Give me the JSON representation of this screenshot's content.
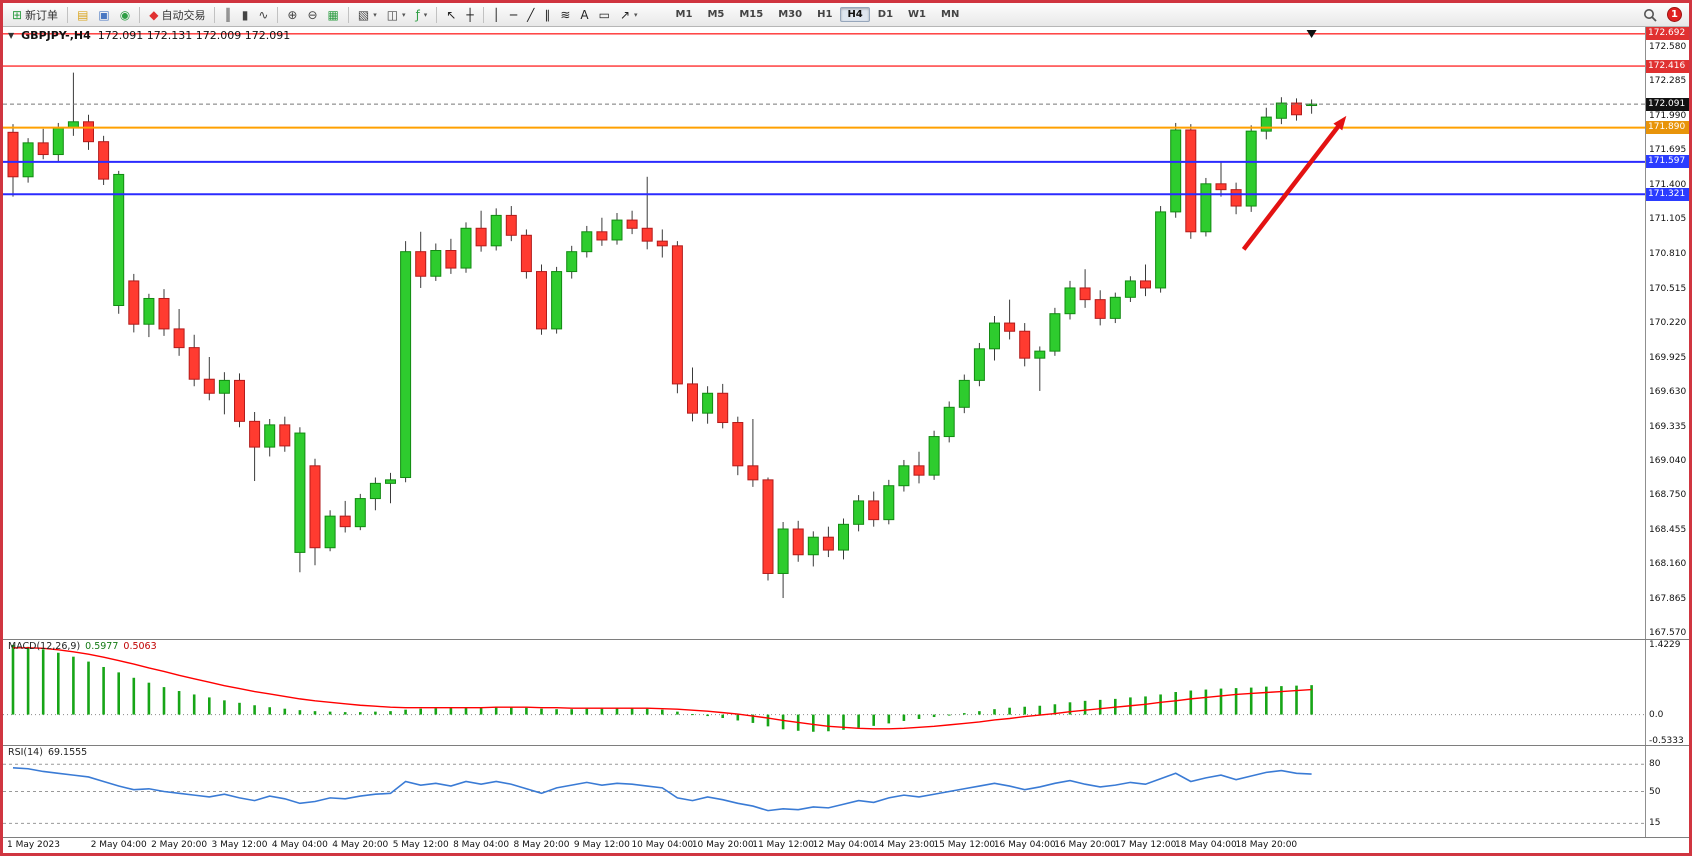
{
  "window": {
    "notification_count": "1",
    "frame_color": "#d03540"
  },
  "toolbar": {
    "groups": [
      {
        "items": [
          {
            "name": "new-order",
            "glyph": "⊞",
            "color": "#2f9e44",
            "label": "新订单"
          }
        ]
      },
      {
        "items": [
          {
            "name": "strategy-tester",
            "glyph": "▤",
            "color": "#d9a520"
          },
          {
            "name": "market-watch",
            "glyph": "▣",
            "color": "#4a78c2"
          },
          {
            "name": "history-center",
            "glyph": "◉",
            "color": "#2f9e44"
          }
        ]
      },
      {
        "items": [
          {
            "name": "autotrading",
            "glyph": "◆",
            "color": "#e03131",
            "label": "自动交易"
          }
        ]
      },
      {
        "items": [
          {
            "name": "bar-chart-mode",
            "glyph": "║",
            "color": "#444"
          },
          {
            "name": "candle-chart-mode",
            "glyph": "▮",
            "color": "#444"
          },
          {
            "name": "line-chart-mode",
            "glyph": "∿",
            "color": "#444"
          }
        ]
      },
      {
        "items": [
          {
            "name": "zoom-in",
            "glyph": "⊕",
            "color": "#444"
          },
          {
            "name": "zoom-out",
            "glyph": "⊖",
            "color": "#444"
          },
          {
            "name": "tile-windows",
            "glyph": "▦",
            "color": "#2f9e44"
          }
        ]
      },
      {
        "items": [
          {
            "name": "new-chart",
            "glyph": "▧",
            "color": "#444",
            "caret": true
          },
          {
            "name": "profiles",
            "glyph": "◫",
            "color": "#444",
            "caret": true
          },
          {
            "name": "indicators",
            "glyph": "ƒ",
            "color": "#2f9e44",
            "caret": true
          }
        ]
      },
      {
        "items": [
          {
            "name": "cursor",
            "glyph": "↖",
            "color": "#222"
          },
          {
            "name": "crosshair",
            "glyph": "┼",
            "color": "#222"
          }
        ]
      },
      {
        "items": [
          {
            "name": "vertical-line",
            "glyph": "│",
            "color": "#222"
          },
          {
            "name": "horizontal-line",
            "glyph": "─",
            "color": "#222"
          },
          {
            "name": "trendline",
            "glyph": "╱",
            "color": "#222"
          },
          {
            "name": "equidistant-channel",
            "glyph": "∥",
            "color": "#222"
          },
          {
            "name": "fibonacci",
            "glyph": "≋",
            "color": "#222"
          },
          {
            "name": "text",
            "glyph": "A",
            "color": "#222"
          },
          {
            "name": "text-label",
            "glyph": "▭",
            "color": "#222"
          },
          {
            "name": "arrows-tool",
            "glyph": "↗",
            "color": "#222",
            "caret": true
          }
        ]
      }
    ],
    "timeframes": [
      {
        "label": "M1"
      },
      {
        "label": "M5"
      },
      {
        "label": "M15"
      },
      {
        "label": "M30"
      },
      {
        "label": "H1"
      },
      {
        "label": "H4",
        "active": true
      },
      {
        "label": "D1"
      },
      {
        "label": "W1"
      },
      {
        "label": "MN"
      }
    ]
  },
  "chart": {
    "symbol_period": "GBPJPY-,H4",
    "ohlc": "172.091 172.131 172.009 172.091"
  },
  "macd": {
    "label": "MACD(12,26,9)",
    "value_main": "0.5977",
    "value_signal": "0.5063",
    "axis": [
      "1.4229",
      "0.0",
      "-0.5333"
    ]
  },
  "rsi": {
    "label": "RSI(14)",
    "value": "69.1555",
    "axis": [
      "80",
      "50",
      "15"
    ]
  },
  "chart_data": {
    "type": "candlestick",
    "symbol": "GBPJPY",
    "period": "H4",
    "current_price": 172.091,
    "candles": [
      [
        171.85,
        171.92,
        171.3,
        171.47
      ],
      [
        171.47,
        171.8,
        171.42,
        171.76
      ],
      [
        171.76,
        171.88,
        171.62,
        171.66
      ],
      [
        171.66,
        171.93,
        171.6,
        171.89
      ],
      [
        171.89,
        172.36,
        171.82,
        171.94
      ],
      [
        171.94,
        172.0,
        171.7,
        171.77
      ],
      [
        171.77,
        171.82,
        171.4,
        171.45
      ],
      [
        170.37,
        171.52,
        170.3,
        171.49
      ],
      [
        170.58,
        170.64,
        170.14,
        170.21
      ],
      [
        170.21,
        170.47,
        170.1,
        170.43
      ],
      [
        170.43,
        170.51,
        170.11,
        170.17
      ],
      [
        170.17,
        170.34,
        169.94,
        170.01
      ],
      [
        170.01,
        170.12,
        169.68,
        169.74
      ],
      [
        169.74,
        169.93,
        169.56,
        169.62
      ],
      [
        169.62,
        169.8,
        169.44,
        169.73
      ],
      [
        169.73,
        169.79,
        169.33,
        169.38
      ],
      [
        169.38,
        169.46,
        168.87,
        169.16
      ],
      [
        169.16,
        169.4,
        169.08,
        169.35
      ],
      [
        169.35,
        169.42,
        169.12,
        169.17
      ],
      [
        168.26,
        169.33,
        168.09,
        169.28
      ],
      [
        169.0,
        169.06,
        168.15,
        168.3
      ],
      [
        168.3,
        168.62,
        168.27,
        168.57
      ],
      [
        168.57,
        168.7,
        168.43,
        168.48
      ],
      [
        168.48,
        168.76,
        168.45,
        168.72
      ],
      [
        168.72,
        168.9,
        168.62,
        168.85
      ],
      [
        168.85,
        168.94,
        168.68,
        168.88
      ],
      [
        168.9,
        170.92,
        168.86,
        170.83
      ],
      [
        170.83,
        171.0,
        170.52,
        170.62
      ],
      [
        170.62,
        170.9,
        170.58,
        170.84
      ],
      [
        170.84,
        170.94,
        170.64,
        170.69
      ],
      [
        170.69,
        171.08,
        170.65,
        171.03
      ],
      [
        171.03,
        171.18,
        170.83,
        170.88
      ],
      [
        170.88,
        171.2,
        170.84,
        171.14
      ],
      [
        171.14,
        171.22,
        170.92,
        170.97
      ],
      [
        170.97,
        171.02,
        170.6,
        170.66
      ],
      [
        170.66,
        170.72,
        170.12,
        170.17
      ],
      [
        170.17,
        170.7,
        170.13,
        170.66
      ],
      [
        170.66,
        170.88,
        170.6,
        170.83
      ],
      [
        170.83,
        171.05,
        170.78,
        171.0
      ],
      [
        171.0,
        171.12,
        170.88,
        170.93
      ],
      [
        170.93,
        171.16,
        170.89,
        171.1
      ],
      [
        171.1,
        171.18,
        170.98,
        171.03
      ],
      [
        171.03,
        171.47,
        170.85,
        170.92
      ],
      [
        170.92,
        171.02,
        170.78,
        170.88
      ],
      [
        170.88,
        170.92,
        169.62,
        169.7
      ],
      [
        169.7,
        169.84,
        169.38,
        169.45
      ],
      [
        169.45,
        169.68,
        169.36,
        169.62
      ],
      [
        169.62,
        169.7,
        169.32,
        169.37
      ],
      [
        169.37,
        169.42,
        168.92,
        169.0
      ],
      [
        169.0,
        169.4,
        168.82,
        168.88
      ],
      [
        168.88,
        168.9,
        168.02,
        168.08
      ],
      [
        168.08,
        168.52,
        167.87,
        168.46
      ],
      [
        168.46,
        168.53,
        168.18,
        168.24
      ],
      [
        168.24,
        168.44,
        168.14,
        168.39
      ],
      [
        168.39,
        168.48,
        168.22,
        168.28
      ],
      [
        168.28,
        168.55,
        168.2,
        168.5
      ],
      [
        168.5,
        168.75,
        168.44,
        168.7
      ],
      [
        168.7,
        168.78,
        168.48,
        168.54
      ],
      [
        168.54,
        168.88,
        168.5,
        168.83
      ],
      [
        168.83,
        169.05,
        168.78,
        169.0
      ],
      [
        169.0,
        169.12,
        168.85,
        168.92
      ],
      [
        168.92,
        169.3,
        168.88,
        169.25
      ],
      [
        169.25,
        169.55,
        169.2,
        169.5
      ],
      [
        169.5,
        169.78,
        169.45,
        169.73
      ],
      [
        169.73,
        170.05,
        169.68,
        170.0
      ],
      [
        170.0,
        170.28,
        169.9,
        170.22
      ],
      [
        170.22,
        170.42,
        170.08,
        170.15
      ],
      [
        170.15,
        170.22,
        169.85,
        169.92
      ],
      [
        169.92,
        170.02,
        169.64,
        169.98
      ],
      [
        169.98,
        170.35,
        169.94,
        170.3
      ],
      [
        170.3,
        170.58,
        170.25,
        170.52
      ],
      [
        170.52,
        170.68,
        170.35,
        170.42
      ],
      [
        170.42,
        170.5,
        170.2,
        170.26
      ],
      [
        170.26,
        170.48,
        170.22,
        170.44
      ],
      [
        170.44,
        170.62,
        170.4,
        170.58
      ],
      [
        170.58,
        170.72,
        170.45,
        170.52
      ],
      [
        170.52,
        171.22,
        170.48,
        171.17
      ],
      [
        171.17,
        171.93,
        171.12,
        171.87
      ],
      [
        171.87,
        171.92,
        170.94,
        171.0
      ],
      [
        171.0,
        171.46,
        170.96,
        171.41
      ],
      [
        171.41,
        171.6,
        171.3,
        171.36
      ],
      [
        171.36,
        171.42,
        171.15,
        171.22
      ],
      [
        171.22,
        171.91,
        171.17,
        171.86
      ],
      [
        171.86,
        172.06,
        171.79,
        171.98
      ],
      [
        171.97,
        172.15,
        171.92,
        172.1
      ],
      [
        172.1,
        172.14,
        171.95,
        172.0
      ],
      [
        172.091,
        172.131,
        172.009,
        172.091
      ]
    ],
    "price_axis_ticks": [
      "172.580",
      "172.285",
      "171.990",
      "171.695",
      "171.400",
      "171.105",
      "170.810",
      "170.515",
      "170.220",
      "169.925",
      "169.630",
      "169.335",
      "169.040",
      "168.750",
      "168.455",
      "168.160",
      "167.865",
      "167.570"
    ],
    "price_badges": [
      {
        "price": 172.692,
        "label": "172.692",
        "color": "#e03131"
      },
      {
        "price": 172.416,
        "label": "172.416",
        "color": "#e03131"
      },
      {
        "price": 172.091,
        "label": "172.091",
        "color": "#111111"
      },
      {
        "price": 171.89,
        "label": "171.890",
        "color": "#e8940a"
      },
      {
        "price": 171.597,
        "label": "171.597",
        "color": "#2b3cff"
      },
      {
        "price": 171.321,
        "label": "171.321",
        "color": "#2b3cff"
      }
    ],
    "hlines": [
      {
        "price": 172.692,
        "color": "#ff2e2e",
        "width": 1.4
      },
      {
        "price": 172.416,
        "color": "#ff2e2e",
        "width": 1.4
      },
      {
        "price": 171.89,
        "color": "#ffa000",
        "width": 2
      },
      {
        "price": 171.597,
        "color": "#2b2bff",
        "width": 2
      },
      {
        "price": 171.321,
        "color": "#2b2bff",
        "width": 2
      }
    ],
    "time_labels": [
      {
        "label": "1 May 2023",
        "index": 0
      },
      {
        "label": "2 May 04:00",
        "index": 7
      },
      {
        "label": "2 May 20:00",
        "index": 11
      },
      {
        "label": "3 May 12:00",
        "index": 15
      },
      {
        "label": "4 May 04:00",
        "index": 19
      },
      {
        "label": "4 May 20:00",
        "index": 23
      },
      {
        "label": "5 May 12:00",
        "index": 27
      },
      {
        "label": "8 May 04:00",
        "index": 31
      },
      {
        "label": "8 May 20:00",
        "index": 35
      },
      {
        "label": "9 May 12:00",
        "index": 39
      },
      {
        "label": "10 May 04:00",
        "index": 43
      },
      {
        "label": "10 May 20:00",
        "index": 47
      },
      {
        "label": "11 May 12:00",
        "index": 51
      },
      {
        "label": "12 May 04:00",
        "index": 55
      },
      {
        "label": "14 May 23:00",
        "index": 59
      },
      {
        "label": "15 May 12:00",
        "index": 63
      },
      {
        "label": "16 May 04:00",
        "index": 67
      },
      {
        "label": "16 May 20:00",
        "index": 71
      },
      {
        "label": "17 May 12:00",
        "index": 75
      },
      {
        "label": "18 May 04:00",
        "index": 79
      },
      {
        "label": "18 May 20:00",
        "index": 83
      }
    ],
    "indicators": {
      "macd": {
        "range": {
          "max": 1.4229,
          "min": -0.5333
        },
        "histogram": [
          1.42,
          1.38,
          1.33,
          1.26,
          1.18,
          1.08,
          0.97,
          0.86,
          0.75,
          0.65,
          0.56,
          0.48,
          0.41,
          0.35,
          0.29,
          0.24,
          0.19,
          0.15,
          0.12,
          0.09,
          0.07,
          0.06,
          0.05,
          0.05,
          0.06,
          0.07,
          0.1,
          0.12,
          0.13,
          0.14,
          0.15,
          0.15,
          0.16,
          0.15,
          0.14,
          0.12,
          0.11,
          0.11,
          0.12,
          0.12,
          0.13,
          0.13,
          0.12,
          0.1,
          0.06,
          0.01,
          -0.03,
          -0.07,
          -0.12,
          -0.17,
          -0.24,
          -0.3,
          -0.33,
          -0.35,
          -0.34,
          -0.31,
          -0.27,
          -0.23,
          -0.18,
          -0.13,
          -0.09,
          -0.05,
          -0.01,
          0.03,
          0.07,
          0.11,
          0.14,
          0.16,
          0.18,
          0.21,
          0.25,
          0.28,
          0.3,
          0.32,
          0.35,
          0.37,
          0.41,
          0.46,
          0.49,
          0.51,
          0.53,
          0.54,
          0.55,
          0.57,
          0.58,
          0.59,
          0.6
        ],
        "signal": [
          1.36,
          1.36,
          1.35,
          1.32,
          1.28,
          1.23,
          1.17,
          1.1,
          1.03,
          0.95,
          0.88,
          0.8,
          0.73,
          0.66,
          0.59,
          0.53,
          0.47,
          0.42,
          0.37,
          0.32,
          0.28,
          0.25,
          0.22,
          0.19,
          0.17,
          0.15,
          0.14,
          0.14,
          0.14,
          0.14,
          0.14,
          0.14,
          0.15,
          0.15,
          0.15,
          0.14,
          0.14,
          0.13,
          0.13,
          0.13,
          0.13,
          0.13,
          0.13,
          0.12,
          0.11,
          0.09,
          0.07,
          0.04,
          0.01,
          -0.03,
          -0.07,
          -0.12,
          -0.16,
          -0.2,
          -0.24,
          -0.26,
          -0.28,
          -0.29,
          -0.29,
          -0.28,
          -0.26,
          -0.24,
          -0.21,
          -0.18,
          -0.15,
          -0.11,
          -0.08,
          -0.04,
          -0.01,
          0.02,
          0.06,
          0.09,
          0.12,
          0.15,
          0.18,
          0.21,
          0.25,
          0.28,
          0.32,
          0.35,
          0.38,
          0.41,
          0.43,
          0.45,
          0.47,
          0.49,
          0.51
        ]
      },
      "rsi": {
        "levels": [
          80,
          50,
          15
        ],
        "values": [
          76,
          75,
          72,
          70,
          68,
          66,
          61,
          56,
          52,
          53,
          50,
          48,
          46,
          44,
          47,
          43,
          40,
          45,
          42,
          37,
          39,
          43,
          42,
          45,
          47,
          48,
          61,
          57,
          59,
          56,
          61,
          58,
          61,
          58,
          53,
          48,
          54,
          57,
          60,
          57,
          59,
          58,
          56,
          54,
          43,
          40,
          44,
          41,
          37,
          34,
          29,
          31,
          30,
          33,
          32,
          36,
          40,
          38,
          43,
          46,
          44,
          47,
          50,
          53,
          56,
          59,
          56,
          52,
          55,
          59,
          62,
          58,
          55,
          57,
          60,
          58,
          64,
          70,
          61,
          65,
          68,
          63,
          67,
          71,
          73,
          70,
          69.2
        ]
      }
    },
    "annotations": {
      "arrow": {
        "from": {
          "index": 81.5,
          "price": 170.85
        },
        "to": {
          "index": 88.3,
          "price": 171.99
        },
        "color": "#e31212"
      },
      "top_marker": {
        "index": 86
      }
    },
    "style": {
      "up_color": "#2ecc2e",
      "up_border": "#128a12",
      "down_color": "#ff3b30",
      "down_border": "#b31b1b",
      "wick_color": "#3a3a3a",
      "macd_bar_color": "#17a517",
      "macd_signal_color": "#ff0000",
      "rsi_line_color": "#3a7bd5"
    }
  }
}
